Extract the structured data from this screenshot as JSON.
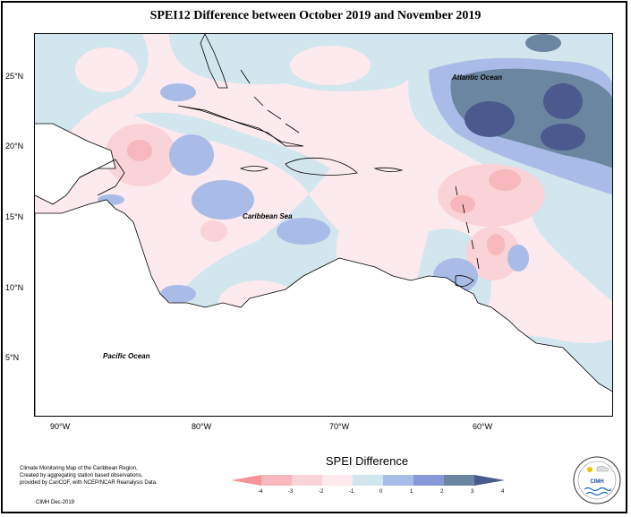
{
  "title": "SPEI12 Difference between October 2019 and November 2019",
  "map": {
    "lat_labels": [
      "25°N",
      "20°N",
      "15°N",
      "10°N",
      "5°N"
    ],
    "lon_labels": [
      "90°W",
      "80°W",
      "70°W",
      "60°W"
    ],
    "ocean_labels": {
      "atlantic": "Atlantic Ocean",
      "caribbean": "Caribbean Sea",
      "pacific": "Pacific Ocean"
    }
  },
  "legend": {
    "title": "SPEI Difference",
    "ticks": [
      "-4",
      "-3",
      "-2",
      "-1",
      "0",
      "1",
      "2",
      "3",
      "4"
    ],
    "colors": [
      "#f4939a",
      "#f6b8bd",
      "#f9d3d7",
      "#fdeaee",
      "#d2e6ed",
      "#a9bce8",
      "#8899d9",
      "#6b86a0",
      "#4a5a8c"
    ]
  },
  "credit": {
    "lines": [
      "Climate Monitoring Map of the Caribbean Region,",
      "Created by aggregating station based observations,",
      "provided by CariCOF, with NCEP/NCAR Reanalysis Data."
    ],
    "date": "CIMH Dec-2019"
  },
  "logo": {
    "text": "CIMH"
  }
}
